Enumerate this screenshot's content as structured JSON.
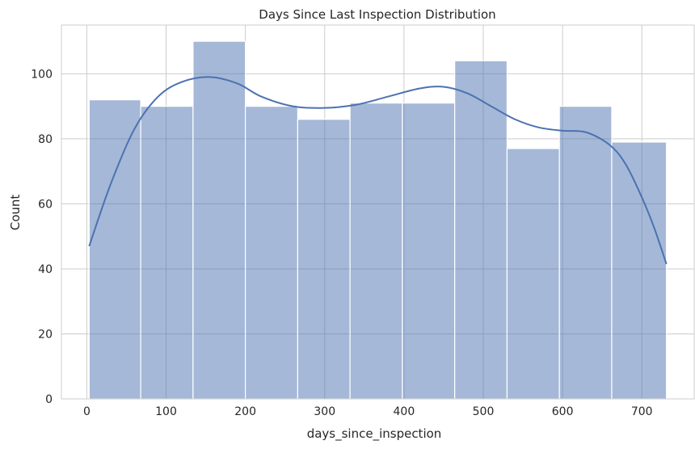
{
  "chart_data": {
    "type": "bar",
    "subtype": "histogram-with-kde",
    "title": "Days Since Last Inspection Distribution",
    "xlabel": "days_since_inspection",
    "ylabel": "Count",
    "xlim": [
      -32,
      766
    ],
    "ylim": [
      0,
      115
    ],
    "xticks": [
      0,
      100,
      200,
      300,
      400,
      500,
      600,
      700
    ],
    "yticks": [
      0,
      20,
      40,
      60,
      80,
      100
    ],
    "grid": true,
    "bar_color": "#4c72b0",
    "bins": [
      {
        "x0": 3,
        "x1": 68,
        "count": 92
      },
      {
        "x0": 68,
        "x1": 134,
        "count": 90
      },
      {
        "x0": 134,
        "x1": 200,
        "count": 110
      },
      {
        "x0": 200,
        "x1": 266,
        "count": 90
      },
      {
        "x0": 266,
        "x1": 332,
        "count": 86
      },
      {
        "x0": 332,
        "x1": 398,
        "count": 91
      },
      {
        "x0": 398,
        "x1": 464,
        "count": 91
      },
      {
        "x0": 464,
        "x1": 530,
        "count": 104
      },
      {
        "x0": 530,
        "x1": 596,
        "count": 77
      },
      {
        "x0": 596,
        "x1": 662,
        "count": 90
      },
      {
        "x0": 662,
        "x1": 731,
        "count": 79
      }
    ],
    "kde": {
      "x": [
        3,
        30,
        60,
        90,
        120,
        155,
        190,
        220,
        260,
        300,
        340,
        380,
        420,
        450,
        480,
        510,
        540,
        570,
        600,
        630,
        660,
        680,
        700,
        715,
        731
      ],
      "y": [
        47,
        66,
        83,
        93,
        97.5,
        99,
        97,
        93,
        90,
        89.5,
        90.5,
        93,
        95.5,
        96,
        94,
        90,
        86,
        83.5,
        82.5,
        82,
        78,
        72,
        62,
        53,
        41.5
      ]
    }
  }
}
